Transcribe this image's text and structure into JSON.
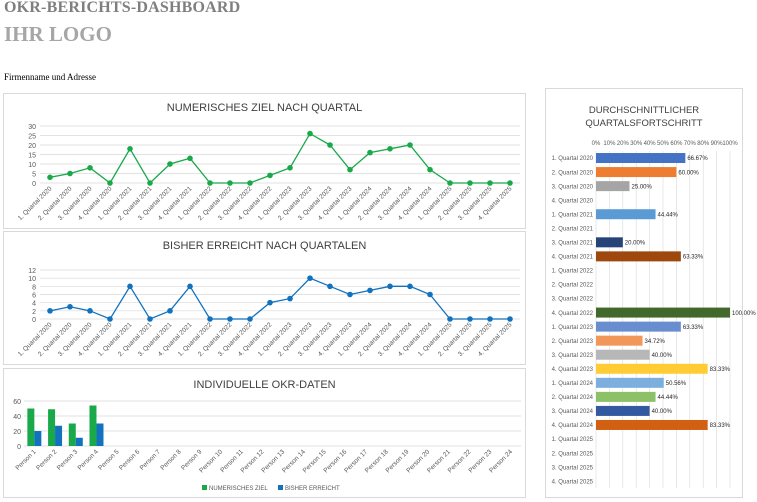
{
  "page": {
    "title": "OKR-BERICHTS-DASHBOARD",
    "logo": "IHR LOGO",
    "company": "Firmenname und Adresse"
  },
  "colors": {
    "green": "#1aa94a",
    "blue": "#1272be",
    "grid": "#d9d9d9",
    "axis_text": "#595959",
    "title_text": "#404040"
  },
  "chart_data": [
    {
      "type": "line",
      "title": "NUMERISCHES ZIEL NACH QUARTAL",
      "color": "#1aa94a",
      "ylim": [
        0,
        30
      ],
      "yticks": [
        0,
        5,
        10,
        15,
        20,
        25,
        30
      ],
      "categories": [
        "1. Quartal 2020",
        "2. Quartal 2020",
        "3. Quartal 2020",
        "4. Quartal 2020",
        "1. Quartal 2021",
        "2. Quartal 2021",
        "3. Quartal 2021",
        "4. Quartal 2021",
        "1. Quartal 2022",
        "2. Quartal 2022",
        "3. Quartal 2022",
        "4. Quartal 2022",
        "1. Quartal 2023",
        "2. Quartal 2023",
        "3. Quartal 2023",
        "4. Quartal 2023",
        "1. Quartal 2024",
        "2. Quartal 2024",
        "3. Quartal 2024",
        "4. Quartal 2024",
        "1. Quartal 2025",
        "2. Quartal 2025",
        "3. Quartal 2025",
        "4. Quartal 2025"
      ],
      "values": [
        3,
        5,
        8,
        0,
        18,
        0,
        10,
        13,
        0,
        0,
        0,
        4,
        8,
        26,
        20,
        7,
        16,
        18,
        20,
        7,
        0,
        0,
        0,
        0
      ]
    },
    {
      "type": "line",
      "title": "BISHER ERREICHT NACH QUARTALEN",
      "color": "#1272be",
      "ylim": [
        0,
        12
      ],
      "yticks": [
        0,
        2,
        4,
        6,
        8,
        10,
        12
      ],
      "categories": [
        "1. Quartal 2020",
        "2. Quartal 2020",
        "3. Quartal 2020",
        "4. Quartal 2020",
        "1. Quartal 2021",
        "2. Quartal 2021",
        "3. Quartal 2021",
        "4. Quartal 2021",
        "1. Quartal 2022",
        "2. Quartal 2022",
        "3. Quartal 2022",
        "4. Quartal 2022",
        "1. Quartal 2023",
        "2. Quartal 2023",
        "3. Quartal 2023",
        "4. Quartal 2023",
        "1. Quartal 2024",
        "2. Quartal 2024",
        "3. Quartal 2024",
        "4. Quartal 2024",
        "1. Quartal 2025",
        "2. Quartal 2025",
        "3. Quartal 2025",
        "4. Quartal 2025"
      ],
      "values": [
        2,
        3,
        2,
        0,
        8,
        0,
        2,
        8,
        0,
        0,
        0,
        4,
        5,
        10,
        8,
        6,
        7,
        8,
        8,
        6,
        0,
        0,
        0,
        0
      ]
    },
    {
      "type": "bar",
      "title": "INDIVIDUELLE OKR-DATEN",
      "ylim": [
        0,
        60
      ],
      "yticks": [
        0,
        20,
        40,
        60
      ],
      "categories": [
        "Person 1",
        "Person 2",
        "Person 3",
        "Person 4",
        "Person 5",
        "Person 6",
        "Person 7",
        "Person 8",
        "Person 9",
        "Person 10",
        "Person 11",
        "Person 12",
        "Person 13",
        "Person 14",
        "Person 15",
        "Person 16",
        "Person 17",
        "Person 18",
        "Person 19",
        "Person 20",
        "Person 21",
        "Person 22",
        "Person 23",
        "Person 24"
      ],
      "series": [
        {
          "name": "NUMERISCHES ZIEL",
          "color": "#1aa94a",
          "values": [
            50,
            49,
            30,
            54,
            0,
            0,
            0,
            0,
            0,
            0,
            0,
            0,
            0,
            0,
            0,
            0,
            0,
            0,
            0,
            0,
            0,
            0,
            0,
            0
          ]
        },
        {
          "name": "BISHER ERREICHT",
          "color": "#1272be",
          "values": [
            20,
            27,
            11,
            30,
            0,
            0,
            0,
            0,
            0,
            0,
            0,
            0,
            0,
            0,
            0,
            0,
            0,
            0,
            0,
            0,
            0,
            0,
            0,
            0
          ]
        }
      ],
      "legend": "bottom"
    },
    {
      "type": "bar",
      "orientation": "horizontal",
      "title": "DURCHSCHNITTLICHER QUARTALSFORTSCHRITT",
      "xlim": [
        0,
        100
      ],
      "xticks": [
        "0%",
        "10%",
        "20%",
        "30%",
        "40%",
        "50%",
        "60%",
        "70%",
        "80%",
        "90%",
        "100%"
      ],
      "categories": [
        "1. Quartal 2020",
        "2. Quartal 2020",
        "3. Quartal 2020",
        "4. Quartal 2020",
        "1. Quartal 2021",
        "2. Quartal 2021",
        "3. Quartal 2021",
        "4. Quartal 2021",
        "1. Quartal 2022",
        "2. Quartal 2022",
        "3. Quartal 2022",
        "4. Quartal 2022",
        "1. Quartal 2023",
        "2. Quartal 2023",
        "3. Quartal 2023",
        "4. Quartal 2023",
        "1. Quartal 2024",
        "2. Quartal 2024",
        "3. Quartal 2024",
        "4. Quartal 2024",
        "1. Quartal 2025",
        "2. Quartal 2025",
        "3. Quartal 2025",
        "4. Quartal 2025"
      ],
      "values": [
        66.67,
        60.0,
        25.0,
        null,
        44.44,
        null,
        20.0,
        63.33,
        null,
        null,
        null,
        100.0,
        63.33,
        34.72,
        40.0,
        83.33,
        50.56,
        44.44,
        40.0,
        83.33,
        null,
        null,
        null,
        null
      ],
      "labels": [
        "66.67%",
        "60.00%",
        "25.00%",
        "",
        "44.44%",
        "",
        "20.00%",
        "63.33%",
        "",
        "",
        "",
        "100.00%",
        "63.33%",
        "34.72%",
        "40.00%",
        "83.33%",
        "50.56%",
        "44.44%",
        "40.00%",
        "83.33%",
        "",
        "",
        "",
        ""
      ],
      "colors": [
        "#4472c4",
        "#ed7d31",
        "#a5a5a5",
        "#ffc000",
        "#5b9bd5",
        "#70ad47",
        "#264478",
        "#9e480e",
        "#636363",
        "#997300",
        "#255e91",
        "#43682b",
        "#698ed0",
        "#f1975a",
        "#b7b7b7",
        "#ffcd33",
        "#7cafdd",
        "#8cc168",
        "#335aa1",
        "#d26012",
        "#848484",
        "#cc9a00",
        "#327dc2",
        "#5a8a39"
      ]
    }
  ]
}
